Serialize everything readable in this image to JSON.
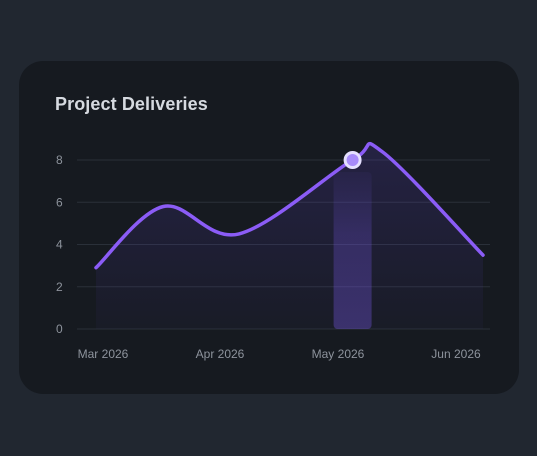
{
  "card": {
    "title": "Project Deliveries"
  },
  "chart_data": {
    "type": "line",
    "title": "Project Deliveries",
    "x": [
      "Mar 2026",
      "Apr 2026",
      "May 2026",
      "Jun 2026"
    ],
    "y_ticks": [
      0,
      2,
      4,
      6,
      8
    ],
    "ylim": [
      0,
      8
    ],
    "grid": true,
    "series": [
      {
        "color": "#8b5cf6",
        "points": [
          {
            "x": "2026-03-01",
            "y": 2.9
          },
          {
            "x": "2026-03-17",
            "y": 5.8
          },
          {
            "x": "2026-04-04",
            "y": 4.5
          },
          {
            "x": "2026-05-01",
            "y": 8.0
          },
          {
            "x": "2026-05-08",
            "y": 8.4
          },
          {
            "x": "2026-06-01",
            "y": 3.5
          }
        ]
      }
    ],
    "highlight": {
      "x": "2026-05-01",
      "y": 8.0
    },
    "colors": {
      "line": "#8b5cf6",
      "grid": "#2a3039",
      "highlight_fill": "#a78bfa",
      "highlight_ring": "#e5e0ff",
      "label": "#8d939c"
    }
  }
}
